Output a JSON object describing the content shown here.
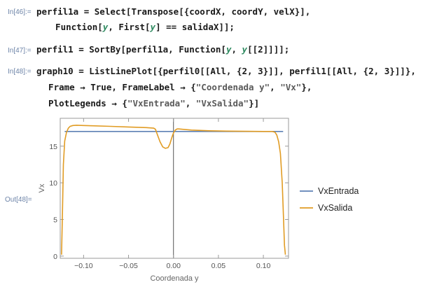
{
  "cells": [
    {
      "label": "In[46]:=",
      "lines": [
        [
          {
            "t": "perfil1a = Select[Transpose[{coordX, coordY, velX}],"
          }
        ],
        [
          {
            "t": "  Function["
          },
          {
            "t": "y",
            "i": true
          },
          {
            "t": ", First["
          },
          {
            "t": "y",
            "i": true
          },
          {
            "t": "] == salidaX]];"
          }
        ]
      ]
    },
    {
      "label": "In[47]:=",
      "lines": [
        [
          {
            "t": "perfil1 = SortBy[perfil1a, Function["
          },
          {
            "t": "y",
            "i": true
          },
          {
            "t": ", "
          },
          {
            "t": "y",
            "i": true
          },
          {
            "t": "[[2]]]];"
          }
        ]
      ]
    },
    {
      "label": "In[48]:=",
      "lines": [
        [
          {
            "t": "graph10 = ListLinePlot[{perfil0[[All, {2, 3}]], perfil1[[All, {2, 3}]]},"
          }
        ],
        [
          {
            "t": "  Frame → True, FrameLabel → {"
          },
          {
            "t": "\"Coordenada y\"",
            "s": true
          },
          {
            "t": ", "
          },
          {
            "t": "\"Vx\"",
            "s": true
          },
          {
            "t": "},"
          }
        ],
        [
          {
            "t": "  PlotLegends → {"
          },
          {
            "t": "\"VxEntrada\"",
            "s": true
          },
          {
            "t": ", "
          },
          {
            "t": "\"VxSalida\"",
            "s": true
          },
          {
            "t": "}]"
          }
        ]
      ]
    }
  ],
  "output_label": "Out[48]=",
  "chart_data": {
    "type": "line",
    "xlabel": "Coordenada y",
    "ylabel": "Vx",
    "xlim": [
      -0.126,
      0.128
    ],
    "ylim": [
      -0.3,
      18.8
    ],
    "x_ticks": [
      -0.1,
      -0.05,
      0,
      0.05,
      0.1
    ],
    "x_tick_labels": [
      "−0.10",
      "−0.05",
      "0.00",
      "0.05",
      "0.10"
    ],
    "y_ticks": [
      0,
      5,
      10,
      15
    ],
    "y_tick_labels": [
      "0",
      "5",
      "10",
      "15"
    ],
    "legend_position": "right",
    "series": [
      {
        "name": "VxEntrada",
        "color": "#5e81b5",
        "x": [
          -0.121,
          0.122
        ],
        "y": [
          17.0,
          17.0
        ]
      },
      {
        "name": "VxSalida",
        "color": "#e19c24",
        "x": [
          -0.1245,
          -0.1235,
          -0.1225,
          -0.121,
          -0.119,
          -0.117,
          -0.115,
          -0.112,
          -0.108,
          -0.1,
          -0.09,
          -0.07,
          -0.05,
          -0.03,
          -0.022,
          -0.02,
          -0.018,
          -0.015,
          -0.012,
          -0.009,
          -0.006,
          -0.004,
          -0.002,
          0.0,
          0.002,
          0.004,
          0.006,
          0.01,
          0.02,
          0.04,
          0.06,
          0.08,
          0.1,
          0.11,
          0.113,
          0.115,
          0.117,
          0.119,
          0.121,
          0.1225,
          0.1235,
          0.1245
        ],
        "y": [
          0.2,
          6.0,
          12.5,
          15.7,
          16.9,
          17.45,
          17.7,
          17.82,
          17.85,
          17.82,
          17.78,
          17.7,
          17.62,
          17.53,
          17.45,
          17.3,
          16.6,
          15.6,
          14.9,
          14.7,
          14.8,
          15.3,
          16.1,
          16.8,
          17.2,
          17.35,
          17.35,
          17.3,
          17.2,
          17.1,
          17.05,
          17.02,
          17.0,
          17.0,
          16.9,
          16.5,
          15.6,
          14.0,
          10.0,
          5.0,
          1.5,
          0.2
        ]
      }
    ]
  }
}
